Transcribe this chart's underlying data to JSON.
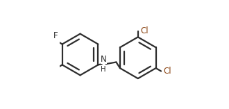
{
  "bg_color": "#ffffff",
  "bond_color": "#2d2d2d",
  "hetero_color": "#8b4513",
  "bond_width": 1.6,
  "figsize": [
    3.3,
    1.57
  ],
  "dpi": 100,
  "r1cx": 0.185,
  "r1cy": 0.5,
  "r1r": 0.19,
  "r2cx": 0.715,
  "r2cy": 0.47,
  "r2r": 0.19,
  "ao1": 90,
  "ao2": 90,
  "db1": [
    0,
    2,
    4
  ],
  "db2": [
    1,
    3,
    5
  ],
  "dbo": 0.038,
  "font_size": 8.5
}
